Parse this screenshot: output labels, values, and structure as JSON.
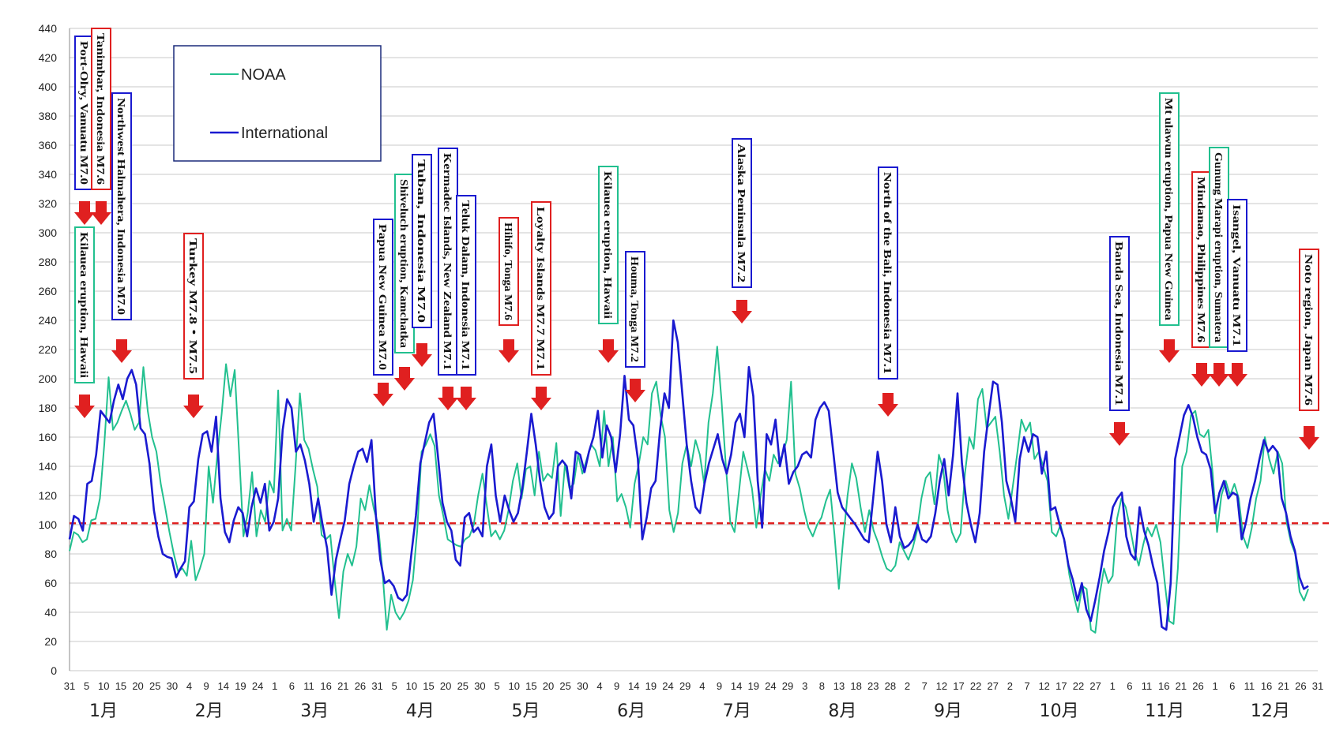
{
  "chart_data": {
    "type": "line",
    "y_ticks": [
      0,
      20,
      40,
      60,
      80,
      100,
      120,
      140,
      160,
      180,
      200,
      220,
      240,
      260,
      280,
      300,
      320,
      340,
      360,
      380,
      400,
      420,
      440
    ],
    "ylim": [
      0,
      440
    ],
    "grid": true,
    "legend_position": "top-left",
    "x_day_labels": [
      "31",
      "5",
      "10",
      "15",
      "20",
      "25",
      "30",
      "4",
      "9",
      "14",
      "19",
      "24",
      "1",
      "6",
      "11",
      "16",
      "21",
      "26",
      "31",
      "5",
      "10",
      "15",
      "20",
      "25",
      "30",
      "5",
      "10",
      "15",
      "20",
      "25",
      "30",
      "4",
      "9",
      "14",
      "19",
      "24",
      "29",
      "4",
      "9",
      "14",
      "19",
      "24",
      "29",
      "3",
      "8",
      "13",
      "18",
      "23",
      "28",
      "2",
      "7",
      "12",
      "17",
      "22",
      "27",
      "2",
      "7",
      "12",
      "17",
      "22",
      "27",
      "1",
      "6",
      "11",
      "16",
      "21",
      "26",
      "1",
      "6",
      "11",
      "16",
      "21",
      "26",
      "31"
    ],
    "x_month_labels": [
      "1月",
      "2月",
      "3月",
      "4月",
      "5月",
      "6月",
      "7月",
      "8月",
      "9月",
      "10月",
      "11月",
      "12月"
    ],
    "reference_line": {
      "value": 101,
      "color": "#e02020"
    },
    "series": [
      {
        "name": "NOAA",
        "color": "#22c08f",
        "values": [
          82,
          95,
          93,
          88,
          90,
          103,
          104,
          118,
          155,
          201,
          165,
          170,
          178,
          185,
          176,
          165,
          170,
          208,
          178,
          160,
          150,
          128,
          112,
          95,
          80,
          68,
          70,
          65,
          89,
          62,
          70,
          80,
          140,
          115,
          148,
          176,
          210,
          188,
          206,
          150,
          92,
          108,
          136,
          92,
          110,
          102,
          130,
          122,
          192,
          96,
          104,
          96,
          140,
          190,
          158,
          152,
          138,
          126,
          93,
          90,
          93,
          62,
          36,
          68,
          80,
          72,
          85,
          118,
          110,
          127,
          111,
          100,
          68,
          28,
          52,
          40,
          35,
          40,
          48,
          62,
          96,
          150,
          155,
          162,
          154,
          120,
          106,
          90,
          88,
          86,
          85,
          90,
          92,
          100,
          120,
          135,
          113,
          92,
          96,
          90,
          96,
          110,
          130,
          142,
          118,
          138,
          140,
          120,
          150,
          130,
          135,
          132,
          156,
          106,
          142,
          125,
          128,
          148,
          135,
          145,
          155,
          151,
          140,
          178,
          140,
          160,
          116,
          121,
          112,
          98,
          128,
          142,
          160,
          155,
          190,
          198,
          175,
          160,
          110,
          95,
          108,
          142,
          155,
          140,
          158,
          148,
          128,
          170,
          190,
          222,
          185,
          140,
          102,
          95,
          122,
          150,
          138,
          125,
          98,
          120,
          138,
          130,
          148,
          142,
          148,
          158,
          198,
          135,
          125,
          110,
          98,
          92,
          100,
          105,
          116,
          124,
          93,
          56,
          90,
          120,
          142,
          132,
          112,
          95,
          110,
          96,
          88,
          78,
          70,
          68,
          72,
          88,
          82,
          76,
          84,
          96,
          118,
          132,
          136,
          114,
          148,
          138,
          110,
          95,
          88,
          94,
          135,
          160,
          152,
          186,
          193,
          166,
          170,
          174,
          150,
          120,
          104,
          126,
          148,
          172,
          164,
          170,
          145,
          150,
          140,
          130,
          95,
          92,
          100,
          88,
          66,
          52,
          40,
          58,
          56,
          28,
          26,
          52,
          70,
          60,
          65,
          104,
          118,
          112,
          98,
          82,
          72,
          86,
          98,
          92,
          100,
          88,
          60,
          34,
          32,
          70,
          140,
          150,
          175,
          178,
          162,
          160,
          165,
          135,
          95,
          120,
          130,
          120,
          128,
          118,
          92,
          84,
          98,
          118,
          130,
          160,
          145,
          135,
          150,
          142,
          102,
          88,
          80,
          54,
          48,
          56
        ]
      },
      {
        "name": "International",
        "color": "#1a1ad0",
        "values": [
          90,
          106,
          104,
          96,
          128,
          130,
          148,
          178,
          174,
          170,
          185,
          196,
          186,
          200,
          206,
          196,
          166,
          162,
          142,
          110,
          92,
          80,
          78,
          77,
          64,
          70,
          75,
          112,
          116,
          145,
          162,
          164,
          150,
          174,
          118,
          95,
          88,
          103,
          112,
          108,
          92,
          112,
          125,
          115,
          128,
          96,
          102,
          118,
          165,
          186,
          180,
          150,
          155,
          144,
          128,
          102,
          118,
          100,
          84,
          52,
          76,
          90,
          103,
          128,
          140,
          150,
          152,
          143,
          158,
          106,
          76,
          60,
          62,
          58,
          50,
          48,
          52,
          80,
          106,
          142,
          156,
          170,
          176,
          146,
          115,
          102,
          96,
          76,
          72,
          105,
          108,
          95,
          98,
          92,
          140,
          155,
          120,
          102,
          120,
          110,
          102,
          108,
          125,
          150,
          176,
          155,
          130,
          112,
          104,
          108,
          140,
          144,
          140,
          118,
          150,
          148,
          136,
          150,
          160,
          178,
          146,
          168,
          160,
          136,
          162,
          202,
          172,
          168,
          145,
          90,
          105,
          125,
          130,
          165,
          190,
          180,
          240,
          225,
          190,
          155,
          130,
          112,
          108,
          128,
          142,
          152,
          162,
          145,
          135,
          148,
          170,
          176,
          160,
          208,
          188,
          130,
          98,
          162,
          155,
          172,
          140,
          155,
          128,
          136,
          140,
          148,
          150,
          146,
          172,
          180,
          184,
          178,
          150,
          122,
          112,
          108,
          104,
          100,
          95,
          90,
          88,
          118,
          150,
          130,
          100,
          88,
          112,
          92,
          84,
          86,
          90,
          100,
          90,
          88,
          92,
          108,
          130,
          145,
          120,
          148,
          190,
          142,
          115,
          100,
          88,
          108,
          150,
          175,
          198,
          196,
          170,
          130,
          118,
          102,
          145,
          160,
          150,
          162,
          160,
          135,
          150,
          110,
          112,
          100,
          90,
          72,
          62,
          48,
          60,
          42,
          34,
          48,
          64,
          82,
          95,
          112,
          118,
          122,
          92,
          80,
          76,
          112,
          96,
          86,
          72,
          60,
          30,
          28,
          60,
          145,
          160,
          175,
          182,
          174,
          160,
          150,
          148,
          138,
          108,
          122,
          130,
          118,
          122,
          120,
          90,
          102,
          118,
          130,
          145,
          158,
          150,
          154,
          150,
          118,
          108,
          92,
          82,
          64,
          56,
          58
        ]
      }
    ],
    "annotations": [
      {
        "text": "Port-Olry, Vanuatu M7.0",
        "frame": "#1a1ad0"
      },
      {
        "text": "Tanimbar, Indonesia M7.6",
        "frame": "#e02020"
      },
      {
        "text": "Northwest Halmahera, Indonesia M7.0",
        "frame": "#1a1ad0"
      },
      {
        "text": "Kilauea eruption, Hawaii",
        "frame": "#22c08f"
      },
      {
        "text": "Turkey M7.8・M7.5",
        "frame": "#e02020"
      },
      {
        "text": "Papua New Guinea M7.0",
        "frame": "#1a1ad0"
      },
      {
        "text": "Shiveluch eruption, Kamchatka",
        "frame": "#22c08f"
      },
      {
        "text": "Tuban, Indonesia M7.0",
        "frame": "#1a1ad0"
      },
      {
        "text": "Kermadec Islands, New Zealand M7.1",
        "frame": "#1a1ad0"
      },
      {
        "text": "Teluk Dalam, Indonesia M7.1",
        "frame": "#1a1ad0"
      },
      {
        "text": "Hihifo, Tonga M7.6",
        "frame": "#e02020"
      },
      {
        "text": "Loyalty Islands M7.7 M7.1",
        "frame": "#e02020"
      },
      {
        "text": "Kilauea eruption, Hawaii",
        "frame": "#22c08f"
      },
      {
        "text": "Houma, Tonga M7.2",
        "frame": "#1a1ad0"
      },
      {
        "text": "Alaska Peninsula M7.2",
        "frame": "#1a1ad0"
      },
      {
        "text": "North of the Bali, Indonesia M7.1",
        "frame": "#1a1ad0"
      },
      {
        "text": "Banda Sea, Indonesia M7.1",
        "frame": "#1a1ad0"
      },
      {
        "text": "Mt ulawun eruption, Papua New Guinea",
        "frame": "#22c08f"
      },
      {
        "text": "Mindanao, Philippines M7.6",
        "frame": "#e02020"
      },
      {
        "text": "Gunung Marapi eruption, Sumatera",
        "frame": "#22c08f"
      },
      {
        "text": "Isangel, Vanuatu M7.1",
        "frame": "#1a1ad0"
      },
      {
        "text": "Noto region, Japan M7.6",
        "frame": "#e02020"
      }
    ]
  }
}
